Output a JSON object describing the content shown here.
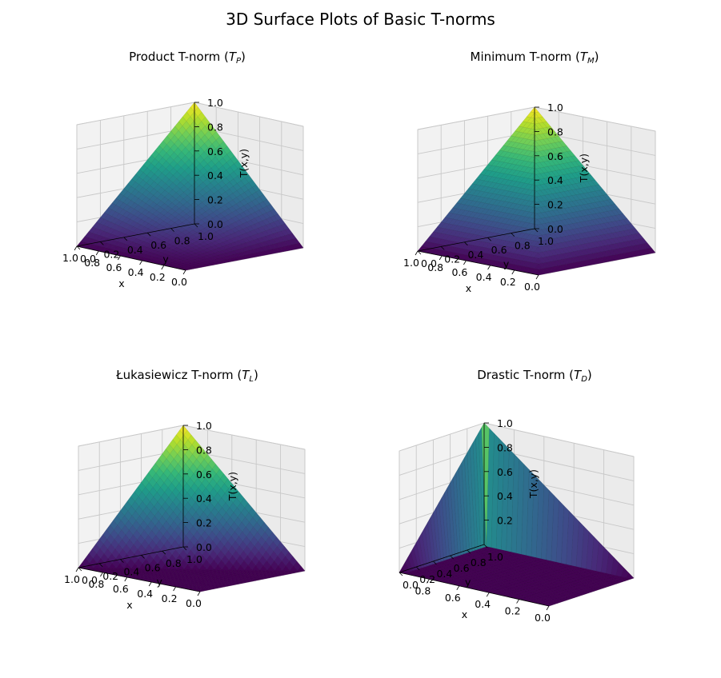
{
  "figure": {
    "title": "3D Surface Plots of Basic T-norms"
  },
  "chart_data": [
    {
      "type": "surface",
      "title_text": "Product T-norm (",
      "title_sym": "T",
      "title_sub": "P",
      "title_end": ")",
      "function": "product",
      "xlabel": "x",
      "ylabel": "y",
      "zlabel": "T(x,y)",
      "xlim": [
        0,
        1
      ],
      "ylim": [
        0,
        1
      ],
      "zlim": [
        0,
        1
      ],
      "x_ticks": [
        "0.0",
        "0.2",
        "0.4",
        "0.6",
        "0.8",
        "1.0"
      ],
      "y_ticks": [
        "0.0",
        "0.2",
        "0.4",
        "0.6",
        "0.8",
        "1.0"
      ],
      "z_ticks": [
        "0.0",
        "0.2",
        "0.4",
        "0.6",
        "0.8",
        "1.0"
      ],
      "colormap": "viridis",
      "grid": true
    },
    {
      "type": "surface",
      "title_text": "Minimum T-norm (",
      "title_sym": "T",
      "title_sub": "M",
      "title_end": ")",
      "function": "minimum",
      "xlabel": "x",
      "ylabel": "y",
      "zlabel": "T(x,y)",
      "xlim": [
        0,
        1
      ],
      "ylim": [
        0,
        1
      ],
      "zlim": [
        0,
        1
      ],
      "x_ticks": [
        "0.0",
        "0.2",
        "0.4",
        "0.6",
        "0.8",
        "1.0"
      ],
      "y_ticks": [
        "0.0",
        "0.2",
        "0.4",
        "0.6",
        "0.8",
        "1.0"
      ],
      "z_ticks": [
        "0.0",
        "0.2",
        "0.4",
        "0.6",
        "0.8",
        "1.0"
      ],
      "colormap": "viridis",
      "grid": true
    },
    {
      "type": "surface",
      "title_text": "Łukasiewicz T-norm (",
      "title_sym": "T",
      "title_sub": "L",
      "title_end": ")",
      "function": "lukasiewicz",
      "xlabel": "x",
      "ylabel": "y",
      "zlabel": "T(x,y)",
      "xlim": [
        0,
        1
      ],
      "ylim": [
        0,
        1
      ],
      "zlim": [
        0,
        1
      ],
      "x_ticks": [
        "0.0",
        "0.2",
        "0.4",
        "0.6",
        "0.8",
        "1.0"
      ],
      "y_ticks": [
        "0.0",
        "0.2",
        "0.4",
        "0.6",
        "0.8",
        "1.0"
      ],
      "z_ticks": [
        "0.0",
        "0.2",
        "0.4",
        "0.6",
        "0.8",
        "1.0"
      ],
      "colormap": "viridis",
      "grid": true
    },
    {
      "type": "surface",
      "title_text": "Drastic T-norm (",
      "title_sym": "T",
      "title_sub": "D",
      "title_end": ")",
      "function": "drastic",
      "xlabel": "x",
      "ylabel": "y",
      "zlabel": "T(x,y)",
      "xlim": [
        0,
        1
      ],
      "ylim": [
        0,
        1
      ],
      "zlim": [
        0,
        1
      ],
      "x_ticks": [
        "0.0",
        "0.2",
        "0.4",
        "0.6",
        "0.8"
      ],
      "y_ticks": [
        "0.0",
        "0.2",
        "0.4",
        "0.6",
        "0.8",
        "1.0"
      ],
      "z_ticks": [
        "0.2",
        "0.4",
        "0.6",
        "0.8",
        "1.0"
      ],
      "colormap": "viridis",
      "grid": true
    }
  ]
}
